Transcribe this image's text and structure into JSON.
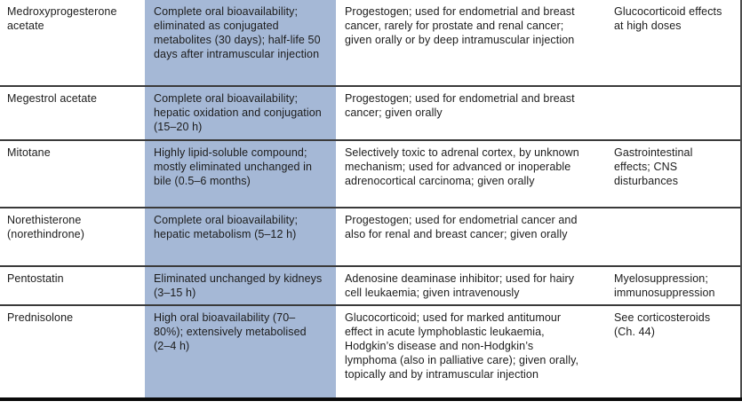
{
  "colors": {
    "pk_column_bg": "#a5b8d6",
    "text": "#1c1c1c",
    "row_divider": "#3a3a3a",
    "bottom_rule": "#0a0a0a",
    "right_edge_line": "#4d4d4d",
    "background": "#ffffff"
  },
  "table": {
    "description": "Drug reference table fragment (no header row visible): drug | pharmacokinetics (shaded) | mechanism and use | unwanted effects",
    "rows": [
      {
        "drug": "Medroxyprogesterone acetate",
        "pharmacokinetics": "Complete oral bioavailability; eliminated as conjugated metabolites (30 days); half-life 50 days after intramuscular injection",
        "use": "Progestogen; used for endometrial and breast cancer, rarely for prostate and renal cancer; given orally or by deep intramuscular injection",
        "side_effects": "Glucocorticoid effects at high doses"
      },
      {
        "drug": "Megestrol acetate",
        "pharmacokinetics": "Complete oral bioavailability; hepatic oxidation and conjugation (15–20 h)",
        "use": "Progestogen; used for endometrial and breast cancer; given orally",
        "side_effects": ""
      },
      {
        "drug": "Mitotane",
        "pharmacokinetics": "Highly lipid-soluble compound; mostly eliminated unchanged in bile (0.5–6 months)",
        "use": "Selectively toxic to adrenal cortex, by unknown mechanism; used for advanced or inoperable adrenocortical carcinoma; given orally",
        "side_effects": "Gastrointestinal effects; CNS disturbances"
      },
      {
        "drug": "Norethisterone (norethindrone)",
        "pharmacokinetics": "Complete oral bioavailability; hepatic metabolism (5–12 h)",
        "use": "Progestogen; used for endometrial cancer and also for renal and breast cancer; given orally",
        "side_effects": ""
      },
      {
        "drug": "Pentostatin",
        "pharmacokinetics": "Eliminated unchanged by kidneys (3–15 h)",
        "use": "Adenosine deaminase inhibitor; used for hairy cell leukaemia; given intravenously",
        "side_effects": "Myelosuppression; immunosuppression"
      },
      {
        "drug": "Prednisolone",
        "pharmacokinetics": "High oral bioavailability (70–80%); extensively metabolised (2–4 h)",
        "use": "Glucocorticoid; used for marked antitumour effect in acute lymphoblastic leukaemia, Hodgkin’s disease and non-Hodgkin’s lymphoma (also in palliative care); given orally, topically and by intramuscular injection",
        "side_effects": "See corticosteroids (Ch. 44)"
      }
    ]
  }
}
